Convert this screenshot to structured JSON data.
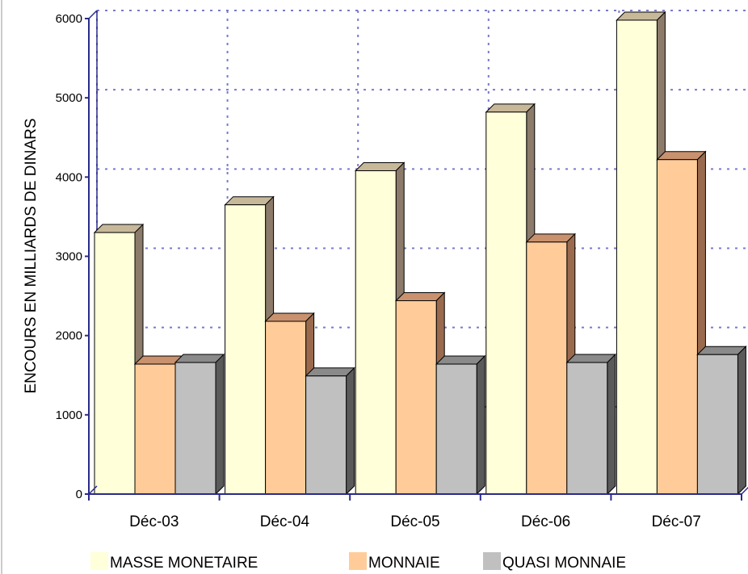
{
  "chart_data": {
    "type": "bar",
    "style": "3d-clustered",
    "title": "",
    "xlabel": "",
    "ylabel": "ENCOURS EN MILLIARDS DE DINARS",
    "ylim": [
      0,
      6000
    ],
    "yticks": [
      0,
      1000,
      2000,
      3000,
      4000,
      5000,
      6000
    ],
    "grid": true,
    "legend_position": "bottom",
    "categories": [
      "Déc-03",
      "Déc-04",
      "Déc-05",
      "Déc-06",
      "Déc-07"
    ],
    "series": [
      {
        "name": "MASSE MONETAIRE",
        "color": "#FFFFD9",
        "values": [
          3300,
          3650,
          4080,
          4820,
          5980
        ]
      },
      {
        "name": "MONNAIE",
        "color": "#FFCC99",
        "values": [
          1640,
          2180,
          2440,
          3180,
          4220
        ]
      },
      {
        "name": "QUASI MONNAIE",
        "color": "#C0C0C0",
        "values": [
          1660,
          1490,
          1640,
          1660,
          1760
        ]
      }
    ]
  }
}
